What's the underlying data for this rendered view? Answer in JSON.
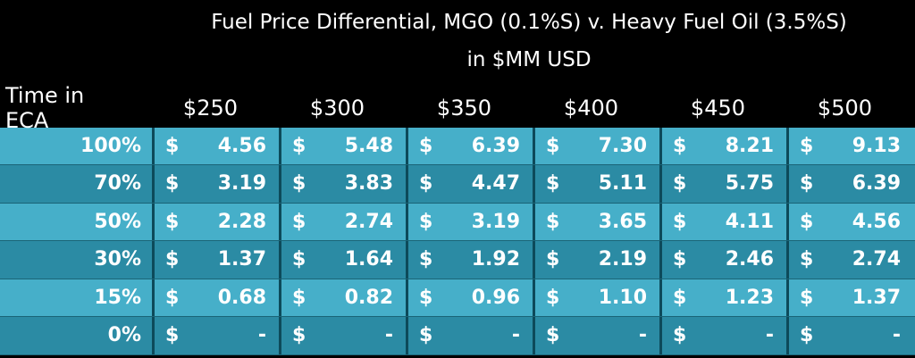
{
  "header": {
    "title": "Fuel Price Differential, MGO (0.1%S) v. Heavy Fuel Oil (3.5%S)",
    "subtitle": "in $MM USD"
  },
  "table": {
    "columns": [
      "Time in ECA",
      "$250",
      "$300",
      "$350",
      "$400",
      "$450",
      "$500"
    ],
    "rows": [
      {
        "label": "100%",
        "cells": [
          [
            "$",
            "4.56"
          ],
          [
            "$",
            "5.48"
          ],
          [
            "$",
            "6.39"
          ],
          [
            "$",
            "7.30"
          ],
          [
            "$",
            "8.21"
          ],
          [
            "$",
            "9.13"
          ]
        ]
      },
      {
        "label": "70%",
        "cells": [
          [
            "$",
            "3.19"
          ],
          [
            "$",
            "3.83"
          ],
          [
            "$",
            "4.47"
          ],
          [
            "$",
            "5.11"
          ],
          [
            "$",
            "5.75"
          ],
          [
            "$",
            "6.39"
          ]
        ]
      },
      {
        "label": "50%",
        "cells": [
          [
            "$",
            "2.28"
          ],
          [
            "$",
            "2.74"
          ],
          [
            "$",
            "3.19"
          ],
          [
            "$",
            "3.65"
          ],
          [
            "$",
            "4.11"
          ],
          [
            "$",
            "4.56"
          ]
        ]
      },
      {
        "label": "30%",
        "cells": [
          [
            "$",
            "1.37"
          ],
          [
            "$",
            "1.64"
          ],
          [
            "$",
            "1.92"
          ],
          [
            "$",
            "2.19"
          ],
          [
            "$",
            "2.46"
          ],
          [
            "$",
            "2.74"
          ]
        ]
      },
      {
        "label": "15%",
        "cells": [
          [
            "$",
            "0.68"
          ],
          [
            "$",
            "0.82"
          ],
          [
            "$",
            "0.96"
          ],
          [
            "$",
            "1.10"
          ],
          [
            "$",
            "1.23"
          ],
          [
            "$",
            "1.37"
          ]
        ]
      },
      {
        "label": "0%",
        "cells": [
          [
            "$",
            "-"
          ],
          [
            "$",
            "-"
          ],
          [
            "$",
            "-"
          ],
          [
            "$",
            "-"
          ],
          [
            "$",
            "-"
          ],
          [
            "$",
            "-"
          ]
        ]
      }
    ]
  }
}
